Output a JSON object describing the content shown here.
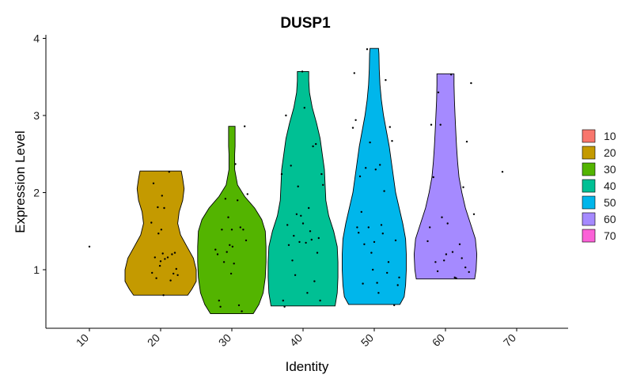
{
  "chart_data": {
    "type": "violin",
    "title": "DUSP1",
    "xlabel": "Identity",
    "ylabel": "Expression Level",
    "categories": [
      "10",
      "20",
      "30",
      "40",
      "50",
      "60",
      "70"
    ],
    "yticks": [
      1,
      2,
      3,
      4
    ],
    "ylim": [
      0.25,
      4.1
    ],
    "legend_position": "right",
    "grid": false,
    "colors": {
      "10": "#F8766D",
      "20": "#C49A00",
      "30": "#53B400",
      "40": "#00C094",
      "50": "#00B6EB",
      "60": "#A58AFF",
      "70": "#FB61D7"
    },
    "violins": [
      {
        "category": "20",
        "min": 0.67,
        "max": 2.28,
        "profile": [
          [
            0.67,
            0.38
          ],
          [
            0.75,
            0.44
          ],
          [
            0.85,
            0.5
          ],
          [
            1.0,
            0.5
          ],
          [
            1.15,
            0.46
          ],
          [
            1.3,
            0.37
          ],
          [
            1.45,
            0.28
          ],
          [
            1.6,
            0.24
          ],
          [
            1.75,
            0.26
          ],
          [
            1.9,
            0.31
          ],
          [
            2.05,
            0.33
          ],
          [
            2.18,
            0.31
          ],
          [
            2.28,
            0.29
          ]
        ]
      },
      {
        "category": "30",
        "min": 0.43,
        "max": 2.86,
        "profile": [
          [
            0.43,
            0.3
          ],
          [
            0.55,
            0.38
          ],
          [
            0.7,
            0.44
          ],
          [
            0.9,
            0.47
          ],
          [
            1.1,
            0.48
          ],
          [
            1.3,
            0.48
          ],
          [
            1.5,
            0.47
          ],
          [
            1.65,
            0.42
          ],
          [
            1.8,
            0.32
          ],
          [
            1.95,
            0.18
          ],
          [
            2.1,
            0.08
          ],
          [
            2.3,
            0.04
          ],
          [
            2.5,
            0.04
          ],
          [
            2.6,
            0.045
          ],
          [
            2.75,
            0.045
          ],
          [
            2.86,
            0.045
          ]
        ]
      },
      {
        "category": "40",
        "min": 0.53,
        "max": 3.57,
        "profile": [
          [
            0.53,
            0.45
          ],
          [
            0.7,
            0.48
          ],
          [
            0.9,
            0.49
          ],
          [
            1.1,
            0.49
          ],
          [
            1.3,
            0.48
          ],
          [
            1.5,
            0.43
          ],
          [
            1.7,
            0.36
          ],
          [
            1.9,
            0.32
          ],
          [
            2.1,
            0.31
          ],
          [
            2.3,
            0.3
          ],
          [
            2.5,
            0.27
          ],
          [
            2.7,
            0.24
          ],
          [
            2.9,
            0.19
          ],
          [
            3.1,
            0.13
          ],
          [
            3.3,
            0.09
          ],
          [
            3.45,
            0.08
          ],
          [
            3.57,
            0.08
          ]
        ]
      },
      {
        "category": "50",
        "min": 0.55,
        "max": 3.87,
        "profile": [
          [
            0.55,
            0.36
          ],
          [
            0.65,
            0.42
          ],
          [
            0.8,
            0.44
          ],
          [
            1.0,
            0.45
          ],
          [
            1.2,
            0.45
          ],
          [
            1.4,
            0.44
          ],
          [
            1.6,
            0.4
          ],
          [
            1.8,
            0.35
          ],
          [
            2.0,
            0.3
          ],
          [
            2.2,
            0.27
          ],
          [
            2.4,
            0.24
          ],
          [
            2.6,
            0.21
          ],
          [
            2.8,
            0.17
          ],
          [
            3.0,
            0.13
          ],
          [
            3.2,
            0.1
          ],
          [
            3.4,
            0.08
          ],
          [
            3.6,
            0.07
          ],
          [
            3.8,
            0.065
          ],
          [
            3.87,
            0.06
          ]
        ]
      },
      {
        "category": "60",
        "min": 0.88,
        "max": 3.54,
        "profile": [
          [
            0.88,
            0.41
          ],
          [
            1.0,
            0.43
          ],
          [
            1.2,
            0.44
          ],
          [
            1.4,
            0.42
          ],
          [
            1.6,
            0.35
          ],
          [
            1.8,
            0.28
          ],
          [
            2.0,
            0.23
          ],
          [
            2.2,
            0.19
          ],
          [
            2.4,
            0.17
          ],
          [
            2.6,
            0.155
          ],
          [
            2.8,
            0.145
          ],
          [
            3.0,
            0.135
          ],
          [
            3.2,
            0.125
          ],
          [
            3.4,
            0.12
          ],
          [
            3.54,
            0.12
          ]
        ]
      }
    ],
    "points": [
      [
        10.0,
        1.3
      ],
      [
        18.7,
        1.61
      ],
      [
        18.8,
        0.96
      ],
      [
        19.0,
        2.12
      ],
      [
        19.2,
        1.16
      ],
      [
        19.4,
        0.89
      ],
      [
        19.6,
        1.81
      ],
      [
        19.7,
        1.47
      ],
      [
        19.9,
        1.05
      ],
      [
        20.0,
        1.11
      ],
      [
        20.1,
        1.52
      ],
      [
        20.2,
        1.96
      ],
      [
        20.3,
        1.21
      ],
      [
        20.4,
        0.67
      ],
      [
        20.5,
        1.8
      ],
      [
        20.6,
        1.14
      ],
      [
        21.0,
        1.16
      ],
      [
        21.2,
        2.27
      ],
      [
        21.4,
        0.86
      ],
      [
        21.6,
        1.2
      ],
      [
        21.8,
        0.95
      ],
      [
        22.0,
        1.22
      ],
      [
        22.2,
        1.01
      ],
      [
        22.4,
        0.93
      ],
      [
        27.7,
        1.26
      ],
      [
        28.0,
        1.2
      ],
      [
        28.2,
        0.6
      ],
      [
        28.4,
        0.52
      ],
      [
        28.6,
        1.52
      ],
      [
        28.9,
        1.1
      ],
      [
        29.1,
        1.92
      ],
      [
        29.3,
        1.23
      ],
      [
        29.5,
        1.68
      ],
      [
        29.7,
        1.32
      ],
      [
        29.9,
        0.95
      ],
      [
        30.0,
        1.52
      ],
      [
        30.1,
        1.3
      ],
      [
        30.3,
        1.08
      ],
      [
        30.5,
        2.37
      ],
      [
        30.8,
        1.9
      ],
      [
        31.0,
        0.54
      ],
      [
        31.2,
        1.55
      ],
      [
        31.4,
        0.46
      ],
      [
        31.6,
        1.52
      ],
      [
        31.8,
        2.86
      ],
      [
        32.0,
        1.38
      ],
      [
        32.2,
        1.98
      ],
      [
        37.0,
        2.24
      ],
      [
        37.2,
        0.6
      ],
      [
        37.4,
        0.52
      ],
      [
        37.6,
        3.0
      ],
      [
        37.8,
        1.58
      ],
      [
        38.0,
        1.32
      ],
      [
        38.3,
        2.35
      ],
      [
        38.5,
        1.12
      ],
      [
        38.7,
        1.44
      ],
      [
        38.9,
        0.93
      ],
      [
        39.1,
        1.72
      ],
      [
        39.3,
        2.08
      ],
      [
        39.5,
        1.36
      ],
      [
        39.7,
        1.7
      ],
      [
        39.9,
        3.57
      ],
      [
        40.0,
        1.6
      ],
      [
        40.2,
        3.1
      ],
      [
        40.4,
        1.35
      ],
      [
        40.6,
        0.7
      ],
      [
        40.8,
        1.8
      ],
      [
        41.0,
        1.5
      ],
      [
        41.2,
        1.39
      ],
      [
        41.4,
        2.6
      ],
      [
        41.6,
        0.85
      ],
      [
        41.8,
        2.63
      ],
      [
        42.0,
        1.22
      ],
      [
        42.2,
        1.41
      ],
      [
        42.4,
        0.6
      ],
      [
        42.6,
        2.24
      ],
      [
        42.8,
        2.1
      ],
      [
        47.0,
        2.84
      ],
      [
        47.2,
        3.55
      ],
      [
        47.4,
        2.94
      ],
      [
        47.6,
        1.55
      ],
      [
        47.8,
        1.48
      ],
      [
        48.0,
        2.21
      ],
      [
        48.2,
        1.75
      ],
      [
        48.4,
        0.82
      ],
      [
        48.6,
        1.33
      ],
      [
        48.8,
        2.32
      ],
      [
        49.0,
        3.86
      ],
      [
        49.2,
        1.55
      ],
      [
        49.4,
        2.65
      ],
      [
        49.6,
        1.22
      ],
      [
        49.8,
        1.0
      ],
      [
        50.0,
        1.36
      ],
      [
        50.2,
        2.3
      ],
      [
        50.4,
        0.83
      ],
      [
        50.6,
        0.7
      ],
      [
        50.8,
        2.36
      ],
      [
        51.0,
        1.58
      ],
      [
        51.2,
        1.47
      ],
      [
        51.4,
        2.02
      ],
      [
        51.6,
        3.46
      ],
      [
        51.8,
        0.96
      ],
      [
        52.0,
        1.1
      ],
      [
        52.2,
        2.85
      ],
      [
        52.5,
        2.67
      ],
      [
        52.8,
        0.54
      ],
      [
        53.0,
        1.38
      ],
      [
        53.3,
        0.8
      ],
      [
        53.5,
        0.9
      ],
      [
        57.5,
        1.37
      ],
      [
        57.8,
        1.55
      ],
      [
        58.0,
        2.88
      ],
      [
        58.3,
        2.2
      ],
      [
        58.6,
        1.1
      ],
      [
        58.9,
        0.98
      ],
      [
        59.0,
        3.3
      ],
      [
        59.3,
        2.88
      ],
      [
        59.5,
        1.68
      ],
      [
        59.8,
        1.12
      ],
      [
        60.1,
        1.2
      ],
      [
        60.3,
        1.6
      ],
      [
        60.8,
        3.53
      ],
      [
        61.0,
        1.23
      ],
      [
        61.3,
        0.9
      ],
      [
        61.5,
        0.89
      ],
      [
        62.0,
        1.33
      ],
      [
        62.3,
        1.15
      ],
      [
        62.5,
        2.07
      ],
      [
        62.8,
        1.03
      ],
      [
        63.0,
        2.66
      ],
      [
        63.3,
        0.97
      ],
      [
        63.6,
        3.42
      ],
      [
        64.0,
        1.72
      ],
      [
        68.0,
        2.27
      ]
    ]
  }
}
